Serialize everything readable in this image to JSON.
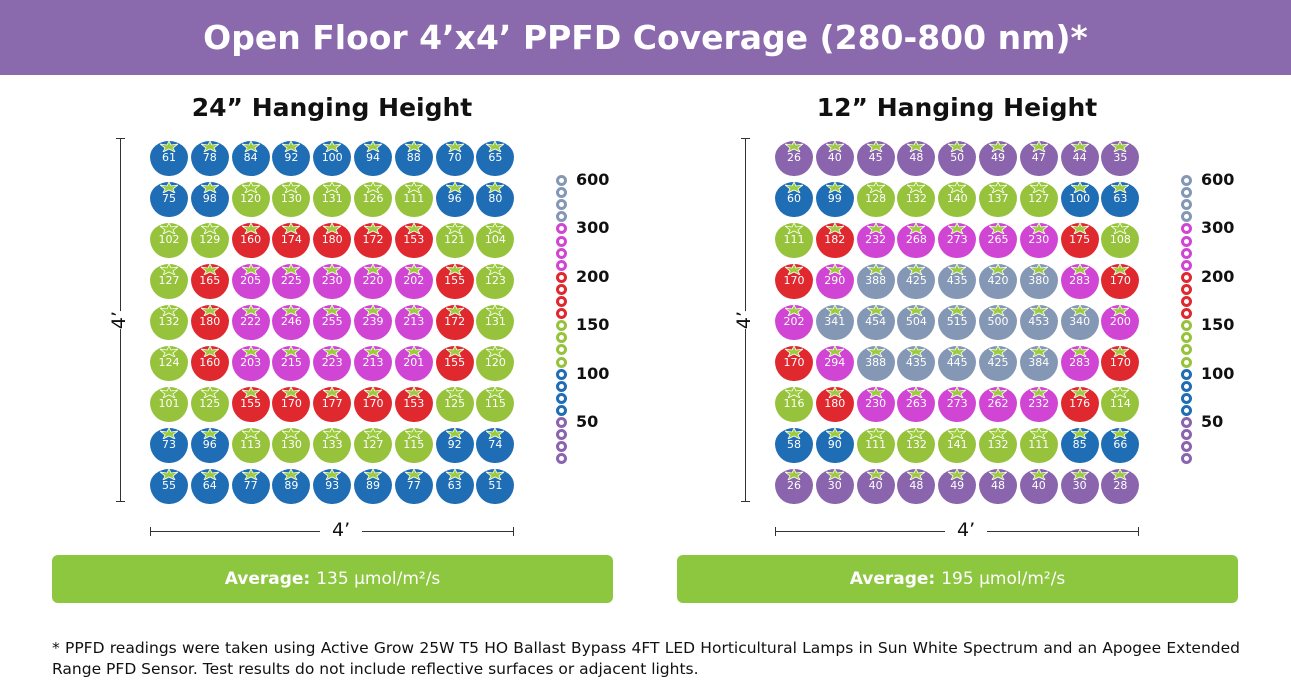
{
  "header": {
    "title": "Open Floor 4’x4’ PPFD Coverage (280-800 nm)*"
  },
  "colors": {
    "header": "#8a69ad",
    "purple": "#8a65ae",
    "blue": "#1f6db4",
    "green": "#97c33c",
    "red": "#e0282f",
    "magenta": "#d145d4",
    "gray": "#8497b5",
    "stem": "#9ccb3b",
    "average_bar": "#8dc63f"
  },
  "dimension_label": "4’",
  "chart_data": [
    {
      "type": "heatmap",
      "title": "24” Hanging Height",
      "units": "µmol/m²/s",
      "rows": [
        [
          61,
          78,
          84,
          92,
          100,
          94,
          88,
          70,
          65
        ],
        [
          75,
          98,
          120,
          130,
          131,
          126,
          111,
          96,
          80
        ],
        [
          102,
          129,
          160,
          174,
          180,
          172,
          153,
          121,
          104
        ],
        [
          127,
          165,
          205,
          225,
          230,
          220,
          202,
          155,
          123
        ],
        [
          132,
          180,
          222,
          246,
          255,
          239,
          213,
          172,
          131
        ],
        [
          124,
          160,
          203,
          215,
          223,
          213,
          201,
          155,
          120
        ],
        [
          101,
          125,
          155,
          170,
          177,
          170,
          153,
          125,
          115
        ],
        [
          73,
          96,
          113,
          130,
          133,
          127,
          115,
          92,
          74
        ],
        [
          55,
          64,
          77,
          89,
          93,
          89,
          77,
          63,
          51
        ]
      ],
      "average_label": "Average:",
      "average_value": "135 µmol/m²/s"
    },
    {
      "type": "heatmap",
      "title": "12” Hanging Height",
      "units": "µmol/m²/s",
      "rows": [
        [
          26,
          40,
          45,
          48,
          50,
          49,
          47,
          44,
          35
        ],
        [
          60,
          99,
          128,
          132,
          140,
          137,
          127,
          100,
          63
        ],
        [
          111,
          182,
          232,
          268,
          273,
          265,
          230,
          175,
          108
        ],
        [
          170,
          290,
          388,
          425,
          435,
          420,
          380,
          283,
          170
        ],
        [
          202,
          341,
          454,
          504,
          515,
          500,
          453,
          340,
          200
        ],
        [
          170,
          294,
          388,
          435,
          445,
          425,
          384,
          283,
          170
        ],
        [
          116,
          180,
          230,
          263,
          273,
          262,
          232,
          176,
          114
        ],
        [
          58,
          90,
          111,
          132,
          141,
          132,
          111,
          85,
          66
        ],
        [
          26,
          30,
          40,
          48,
          49,
          48,
          40,
          30,
          28
        ]
      ],
      "average_label": "Average:",
      "average_value": "195 µmol/m²/s"
    }
  ],
  "legend": {
    "ticks": [
      "600",
      "300",
      "200",
      "150",
      "100",
      "50"
    ],
    "bands": [
      "gray",
      "magenta",
      "red",
      "green",
      "blue",
      "purple"
    ]
  },
  "footnote": "* PPFD readings were taken using Active Grow 25W T5 HO Ballast Bypass 4FT LED Horticultural Lamps in Sun White Spectrum and an Apogee Extended Range PFD Sensor. Test results do not include reflective surfaces or adjacent lights."
}
